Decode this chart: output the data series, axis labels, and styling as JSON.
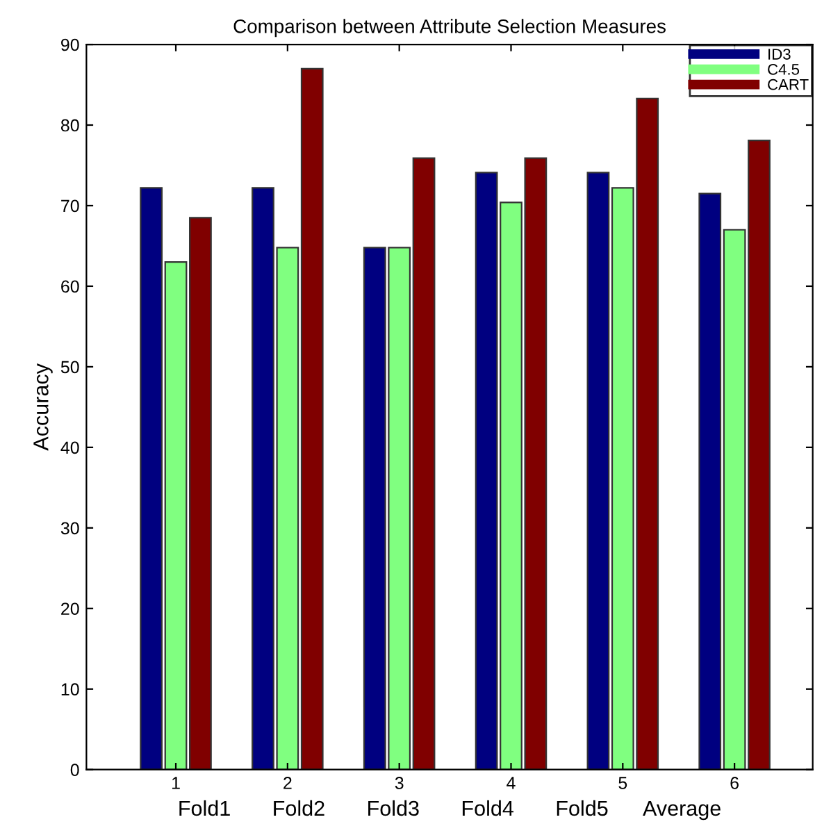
{
  "chart_data": {
    "type": "bar",
    "title": "Comparison between Attribute Selection Measures",
    "xlabel": "Fold1       Fold2       Fold3       Fold4       Fold5      Average",
    "ylabel": "Accuracy",
    "x": [
      1,
      2,
      3,
      4,
      5,
      6
    ],
    "xlim": [
      0.2,
      6.7
    ],
    "xticks": [
      1,
      2,
      3,
      4,
      5,
      6
    ],
    "ylim": [
      0,
      90
    ],
    "yticks": [
      0,
      10,
      20,
      30,
      40,
      50,
      60,
      70,
      80,
      90
    ],
    "grid": false,
    "legend": "top right",
    "series": [
      {
        "name": "ID3",
        "color": "#000080",
        "values": [
          72.2,
          72.2,
          64.8,
          74.1,
          74.1,
          71.5
        ]
      },
      {
        "name": "C4.5",
        "color": "#80ff80",
        "values": [
          63.0,
          64.8,
          64.8,
          70.4,
          72.2,
          67.0
        ]
      },
      {
        "name": "CART",
        "color": "#800000",
        "values": [
          68.5,
          87.0,
          75.9,
          75.9,
          83.3,
          78.1
        ]
      }
    ]
  }
}
